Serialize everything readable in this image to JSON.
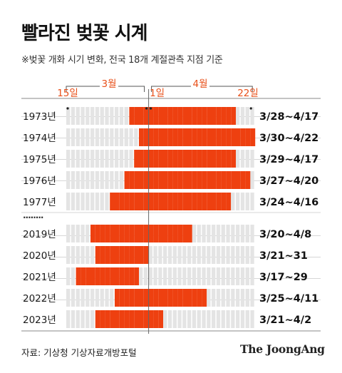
{
  "title": "빨라진 벚꽃 시계",
  "subtitle": "※벚꽃 개화 시기 변화, 전국 18개 계절관측 지점 기준",
  "source": "자료: 기상청 기상자료개방포털",
  "logo": "The JoongAng",
  "colors": {
    "bloom": "#ee4010",
    "idle": "#e4e4e4",
    "accent_text": "#e8501a",
    "axis": "#444444"
  },
  "chart_data": {
    "type": "bar",
    "title": "빨라진 벚꽃 시계",
    "x_axis": {
      "range_days": [
        "3/15",
        "4/22"
      ],
      "labels": [
        {
          "text": "15일",
          "date": "3/15"
        },
        {
          "text": "3월",
          "date": "3/15~3/31"
        },
        {
          "text": "1일",
          "date": "4/1"
        },
        {
          "text": "4월",
          "date": "4/1~4/22"
        },
        {
          "text": "22일",
          "date": "4/22"
        }
      ]
    },
    "ellipsis": "........",
    "rows": [
      {
        "year": "1973년",
        "start": "3/28",
        "end": "4/17",
        "label": "3/28~4/17"
      },
      {
        "year": "1974년",
        "start": "3/30",
        "end": "4/22",
        "label": "3/30~4/22"
      },
      {
        "year": "1975년",
        "start": "3/29",
        "end": "4/17",
        "label": "3/29~4/17"
      },
      {
        "year": "1976년",
        "start": "3/27",
        "end": "4/20",
        "label": "3/27~4/20"
      },
      {
        "year": "1977년",
        "start": "3/24",
        "end": "4/16",
        "label": "3/24~4/16"
      },
      {
        "year": "2019년",
        "start": "3/20",
        "end": "4/8",
        "label": "3/20~4/8"
      },
      {
        "year": "2020년",
        "start": "3/21",
        "end": "3/31",
        "label": "3/21~31"
      },
      {
        "year": "2021년",
        "start": "3/17",
        "end": "3/29",
        "label": "3/17~29"
      },
      {
        "year": "2022년",
        "start": "3/25",
        "end": "4/11",
        "label": "3/25~4/11"
      },
      {
        "year": "2023년",
        "start": "3/21",
        "end": "4/2",
        "label": "3/21~4/2"
      }
    ]
  }
}
